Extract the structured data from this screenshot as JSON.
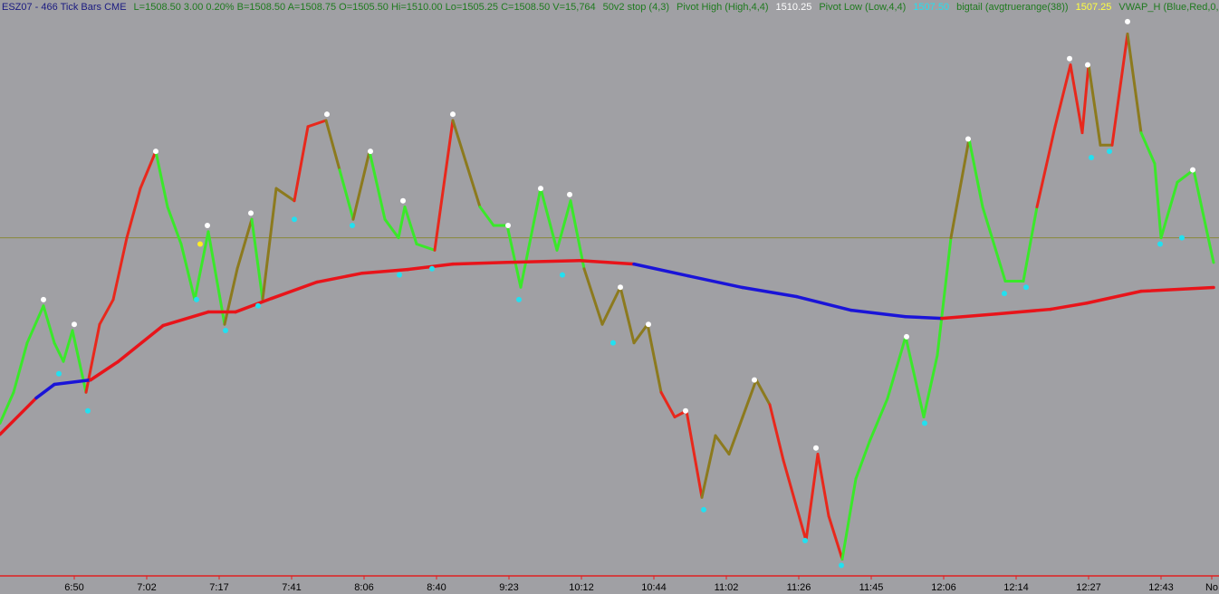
{
  "header": [
    {
      "text": "ESZ07 - 466 Tick Bars  CME",
      "color": "#1a1a80"
    },
    {
      "text": "L=1508.50  3.00  0.20%  B=1508.50  A=1508.75  O=1505.50  Hi=1510.00  Lo=1505.25  C=1508.50  V=15,764",
      "color": "#1f7a1f"
    },
    {
      "text": "50v2 stop (4,3)",
      "color": "#1f7a1f"
    },
    {
      "text": "Pivot High (High,4,4)",
      "color": "#1f7a1f"
    },
    {
      "text": "1510.25",
      "color": "#ffffff"
    },
    {
      "text": "Pivot Low (Low,4,4)",
      "color": "#1f7a1f"
    },
    {
      "text": "1507.50",
      "color": "#22e0f0"
    },
    {
      "text": "bigtail (avgtruerange(38))",
      "color": "#1f7a1f"
    },
    {
      "text": "1507.25",
      "color": "#ffff40"
    },
    {
      "text": "VWAP_H (Blue,Red,0,",
      "color": "#1f7a1f"
    }
  ],
  "chart_data": {
    "type": "line",
    "xlim": [
      0,
      673
    ],
    "ylim": [
      1493.75,
      1516.5
    ],
    "xticks": [
      {
        "value": 41,
        "label": "6:50"
      },
      {
        "value": 81,
        "label": "7:02"
      },
      {
        "value": 121,
        "label": "7:17"
      },
      {
        "value": 161,
        "label": "7:41"
      },
      {
        "value": 201,
        "label": "8:06"
      },
      {
        "value": 241,
        "label": "8:40"
      },
      {
        "value": 281,
        "label": "9:23"
      },
      {
        "value": 321,
        "label": "10:12"
      },
      {
        "value": 361,
        "label": "10:44"
      },
      {
        "value": 401,
        "label": "11:02"
      },
      {
        "value": 441,
        "label": "11:26"
      },
      {
        "value": 481,
        "label": "11:45"
      },
      {
        "value": 521,
        "label": "12:06"
      },
      {
        "value": 561,
        "label": "12:14"
      },
      {
        "value": 601,
        "label": "12:27"
      },
      {
        "value": 641,
        "label": "12:43"
      },
      {
        "value": 669,
        "label": "No"
      }
    ],
    "reference_line": {
      "value": 1507.5,
      "color": "#8a8a3a"
    },
    "series": [
      {
        "name": "price",
        "x": [
          0,
          7.5,
          15,
          24,
          30,
          35,
          40,
          47.5,
          55,
          62.5,
          70,
          77.5,
          86,
          92.5,
          100,
          107.5,
          115,
          124,
          131,
          139,
          145,
          152.5,
          162.5,
          170,
          180,
          187.5,
          195,
          204,
          212.5,
          220,
          223.5,
          230,
          240,
          250,
          257.5,
          265,
          272.5,
          280,
          287.5,
          298.5,
          307.5,
          315,
          322.5,
          332.5,
          342.5,
          350,
          357.5,
          365,
          372.5,
          379,
          387.5,
          395,
          402.5,
          410,
          417.5,
          425,
          432.5,
          445,
          451.5,
          457.5,
          465,
          472.5,
          480,
          490,
          500,
          510,
          517.5,
          525,
          535,
          542.5,
          555,
          565,
          572.5,
          582.5,
          591,
          597.5,
          601,
          607.5,
          614,
          622.5,
          630,
          637.5,
          641,
          650,
          659,
          670
        ],
        "values": [
          1500,
          1501.25,
          1503.25,
          1504.75,
          1503.25,
          1502.5,
          1503.75,
          1501.25,
          1504,
          1505,
          1507.5,
          1509.5,
          1511,
          1508.75,
          1507.25,
          1505,
          1507.75,
          1504,
          1506.25,
          1508.25,
          1505,
          1509.5,
          1509,
          1512,
          1512.25,
          1510.25,
          1508.25,
          1511,
          1508.25,
          1507.5,
          1508.75,
          1507.25,
          1507,
          1512.25,
          1510.5,
          1508.75,
          1508,
          1508,
          1505.5,
          1509.5,
          1507,
          1509,
          1506.25,
          1504,
          1505.5,
          1503.25,
          1504,
          1501.25,
          1500.25,
          1500.5,
          1497,
          1499.5,
          1498.75,
          1500.25,
          1501.75,
          1500.75,
          1498.5,
          1495.25,
          1498.75,
          1496.25,
          1494.5,
          1497.75,
          1499.25,
          1501,
          1503.5,
          1500.25,
          1502.75,
          1507.5,
          1511.5,
          1508.75,
          1505.75,
          1505.75,
          1508.75,
          1512,
          1514.5,
          1511.75,
          1514.5,
          1511.25,
          1511.25,
          1515.75,
          1511.75,
          1510.5,
          1507.5,
          1509.75,
          1510.25,
          1506.5
        ],
        "colors": [
          "#3ae82a",
          "#3ae82a",
          "#3ae82a",
          "#3ae82a",
          "#3ae82a",
          "#3ae82a",
          "#3ae82a",
          "#3ae82a",
          "#e8281c",
          "#e8281c",
          "#e8281c",
          "#e8281c",
          "#e8281c",
          "#3ae82a",
          "#3ae82a",
          "#3ae82a",
          "#3ae82a",
          "#3ae82a",
          "#8c7a1e",
          "#8c7a1e",
          "#3ae82a",
          "#8c7a1e",
          "#8c7a1e",
          "#e8281c",
          "#e8281c",
          "#8c7a1e",
          "#3ae82a",
          "#8c7a1e",
          "#3ae82a",
          "#3ae82a",
          "#3ae82a",
          "#3ae82a",
          "#3ae82a",
          "#e8281c",
          "#8c7a1e",
          "#8c7a1e",
          "#3ae82a",
          "#3ae82a",
          "#3ae82a",
          "#3ae82a",
          "#3ae82a",
          "#3ae82a",
          "#3ae82a",
          "#8c7a1e",
          "#8c7a1e",
          "#8c7a1e",
          "#8c7a1e",
          "#8c7a1e",
          "#e8281c",
          "#e8281c",
          "#e8281c",
          "#8c7a1e",
          "#8c7a1e",
          "#8c7a1e",
          "#8c7a1e",
          "#8c7a1e",
          "#e8281c",
          "#e8281c",
          "#e8281c",
          "#e8281c",
          "#e8281c",
          "#3ae82a",
          "#3ae82a",
          "#3ae82a",
          "#3ae82a",
          "#3ae82a",
          "#3ae82a",
          "#3ae82a",
          "#8c7a1e",
          "#3ae82a",
          "#3ae82a",
          "#3ae82a",
          "#3ae82a",
          "#e8281c",
          "#e8281c",
          "#e8281c",
          "#e8281c",
          "#8c7a1e",
          "#8c7a1e",
          "#e8281c",
          "#8c7a1e",
          "#3ae82a",
          "#3ae82a",
          "#3ae82a",
          "#3ae82a",
          "#3ae82a"
        ]
      },
      {
        "name": "vwap",
        "x": [
          0,
          20,
          30,
          50,
          65,
          90,
          115,
          130,
          150,
          175,
          200,
          225,
          250,
          280,
          320,
          350,
          380,
          410,
          440,
          470,
          500,
          520,
          550,
          580,
          600,
          630,
          670
        ],
        "values": [
          1499.55,
          1501.02,
          1501.57,
          1501.75,
          1502.48,
          1503.95,
          1504.5,
          1504.5,
          1505.05,
          1505.71,
          1506.07,
          1506.22,
          1506.44,
          1506.51,
          1506.58,
          1506.44,
          1505.96,
          1505.49,
          1505.12,
          1504.57,
          1504.31,
          1504.24,
          1504.42,
          1504.61,
          1504.86,
          1505.34,
          1505.49
        ],
        "colors": [
          "#e8141a",
          "#e8141a",
          "#1a14d8",
          "#1a14d8",
          "#e8141a",
          "#e8141a",
          "#e8141a",
          "#e8141a",
          "#e8141a",
          "#e8141a",
          "#e8141a",
          "#e8141a",
          "#e8141a",
          "#e8141a",
          "#e8141a",
          "#e8141a",
          "#1a14d8",
          "#1a14d8",
          "#1a14d8",
          "#1a14d8",
          "#1a14d8",
          "#1a14d8",
          "#e8141a",
          "#e8141a",
          "#e8141a",
          "#e8141a",
          "#e8141a"
        ]
      }
    ],
    "pivot_highs": {
      "color": "#ffffff",
      "x": [
        24,
        41,
        86,
        114.5,
        138.5,
        180.5,
        204.5,
        222.5,
        250,
        280.5,
        298.5,
        314.5,
        342.5,
        358,
        378.5,
        416.5,
        450.5,
        500.5,
        534.5,
        590.5,
        600.5,
        622.5,
        658.5
      ],
      "values": [
        1505,
        1504,
        1511,
        1508,
        1508.5,
        1512.5,
        1511,
        1509,
        1512.5,
        1508,
        1509.5,
        1509.25,
        1505.5,
        1504,
        1500.5,
        1501.75,
        1499,
        1503.5,
        1511.5,
        1514.75,
        1514.5,
        1516.25,
        1510.25
      ]
    },
    "pivot_lows": {
      "color": "#22e0f0",
      "x": [
        32.5,
        48.5,
        108.5,
        124.5,
        142.5,
        162.5,
        194.5,
        220.5,
        238.5,
        286.5,
        310.5,
        338.5,
        388.5,
        444.5,
        464.5,
        510.5,
        554.5,
        566.5,
        602.5,
        612.5,
        640.5,
        652.5
      ],
      "values": [
        1502,
        1500.5,
        1505,
        1503.75,
        1504.75,
        1508.25,
        1508,
        1506,
        1506.25,
        1505,
        1506,
        1503.25,
        1496.5,
        1495.25,
        1494.25,
        1500,
        1505.25,
        1505.5,
        1510.75,
        1511,
        1507.25,
        1507.5
      ]
    },
    "bigtail": {
      "color": "#ffee22",
      "x": [
        110.5
      ],
      "values": [
        1507.25
      ]
    }
  }
}
